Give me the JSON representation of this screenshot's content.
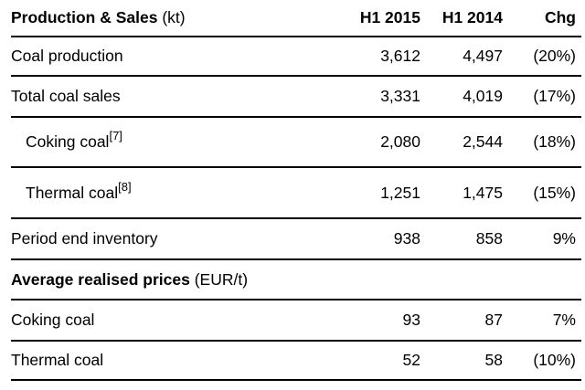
{
  "table": {
    "header": {
      "title": "Production & Sales",
      "unit": " (kt)",
      "columns": [
        "H1 2015",
        "H1 2014",
        "Chg"
      ]
    },
    "section": {
      "title": "Average realised prices",
      "unit": " (EUR/t)"
    },
    "rows": [
      {
        "label": "Coal production",
        "footnote": "",
        "h1_2015": "3,612",
        "h1_2014": "4,497",
        "chg": "(20%)"
      },
      {
        "label": "Total coal sales",
        "footnote": "",
        "h1_2015": "3,331",
        "h1_2014": "4,019",
        "chg": "(17%)"
      },
      {
        "label": "Coking coal",
        "footnote": "[7]",
        "h1_2015": "2,080",
        "h1_2014": "2,544",
        "chg": "(18%)"
      },
      {
        "label": "Thermal coal",
        "footnote": "[8]",
        "h1_2015": "1,251",
        "h1_2014": "1,475",
        "chg": "(15%)"
      },
      {
        "label": "Period end inventory",
        "footnote": "",
        "h1_2015": "938",
        "h1_2014": "858",
        "chg": "9%"
      },
      {
        "label": "Coking coal",
        "footnote": "",
        "h1_2015": "93",
        "h1_2014": "87",
        "chg": "7%"
      },
      {
        "label": "Thermal coal",
        "footnote": "",
        "h1_2015": "52",
        "h1_2014": "58",
        "chg": "(10%)"
      }
    ]
  }
}
